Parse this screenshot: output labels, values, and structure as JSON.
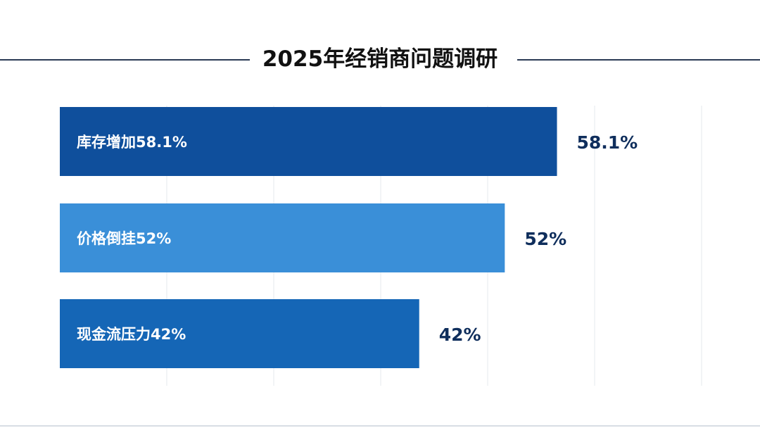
{
  "chart_data": {
    "type": "bar",
    "orientation": "horizontal",
    "title": "2025年经销商问题调研",
    "categories": [
      "库存增加58.1%",
      "价格倒挂52%",
      "现金流压力42%"
    ],
    "values": [
      58.1,
      52,
      42
    ],
    "value_labels": [
      "58.1%",
      "52%",
      "42%"
    ],
    "unit": "%",
    "xlim": [
      0,
      75
    ],
    "grid": true,
    "colors": [
      "#0f4f9c",
      "#3a8fd8",
      "#1566b6"
    ],
    "label_color": "#0f2e5c"
  }
}
